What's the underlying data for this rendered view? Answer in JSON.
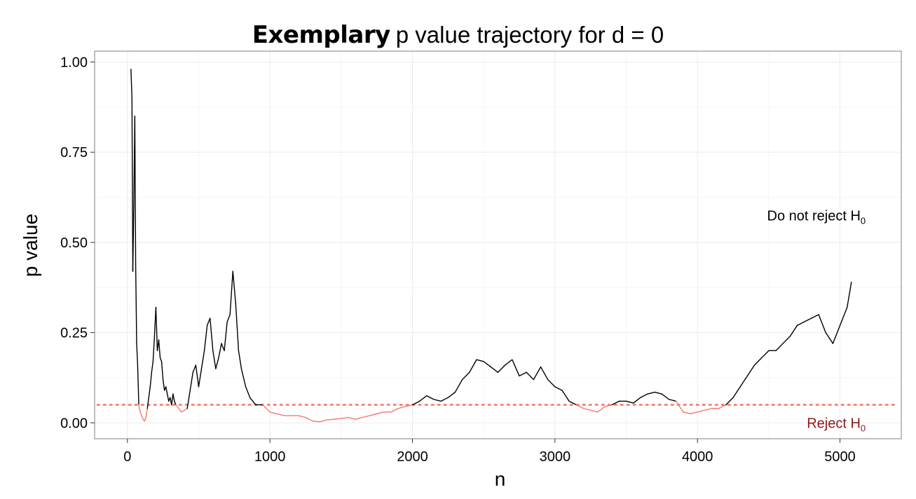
{
  "colors": {
    "reject": "#f8766d",
    "reject_text": "#8b1a1a",
    "series": "#000000",
    "grid": "#ebebeb",
    "panel_border": "#7f7f7f"
  },
  "title": {
    "part1": "Exemplary",
    "part2": "p value trajectory for d = 0"
  },
  "annotations": {
    "do_not_reject": "Do not reject H",
    "reject": "Reject H",
    "subscript": "0"
  },
  "chart_data": {
    "type": "line",
    "xlabel": "n",
    "ylabel": "p value",
    "xlim": [
      -230,
      5430
    ],
    "ylim": [
      -0.044,
      1.03
    ],
    "x_ticks": [
      0,
      1000,
      2000,
      3000,
      4000,
      5000
    ],
    "y_ticks": [
      0,
      0.25,
      0.5,
      0.75,
      1.0
    ],
    "x_tick_labels": [
      "0",
      "1000",
      "2000",
      "3000",
      "4000",
      "5000"
    ],
    "y_tick_labels": [
      "0.00",
      "0.25",
      "0.50",
      "0.75",
      "1.00"
    ],
    "threshold": 0.05,
    "grid": true,
    "series": [
      {
        "x": [
          25,
          32,
          38,
          45,
          52,
          58,
          65,
          72,
          80,
          90,
          100,
          110,
          120,
          130,
          140,
          150,
          160,
          170,
          180,
          190,
          200,
          210,
          220,
          230,
          240,
          250,
          260,
          270,
          280,
          290,
          300,
          310,
          320,
          330,
          340,
          360,
          380,
          400,
          420,
          440,
          460,
          480,
          500,
          520,
          540,
          560,
          580,
          600,
          620,
          640,
          660,
          680,
          700,
          720,
          740,
          760,
          780,
          800,
          830,
          860,
          900,
          950,
          1000,
          1050,
          1100,
          1150,
          1200,
          1250,
          1300,
          1350,
          1400,
          1450,
          1500,
          1550,
          1600,
          1650,
          1700,
          1750,
          1800,
          1850,
          1900,
          1950,
          2000,
          2050,
          2100,
          2150,
          2200,
          2250,
          2300,
          2350,
          2400,
          2450,
          2500,
          2550,
          2600,
          2650,
          2700,
          2750,
          2800,
          2850,
          2900,
          2950,
          3000,
          3050,
          3100,
          3150,
          3200,
          3250,
          3300,
          3350,
          3400,
          3450,
          3500,
          3550,
          3600,
          3650,
          3700,
          3750,
          3800,
          3850,
          3900,
          3950,
          4000,
          4050,
          4100,
          4150,
          4200,
          4250,
          4300,
          4350,
          4400,
          4450,
          4500,
          4550,
          4600,
          4650,
          4700,
          4750,
          4800,
          4850,
          4900,
          4950,
          5000,
          5050,
          5080
        ],
        "y": [
          0.98,
          0.9,
          0.42,
          0.6,
          0.85,
          0.44,
          0.22,
          0.16,
          0.05,
          0.03,
          0.02,
          0.01,
          0.005,
          0.015,
          0.04,
          0.07,
          0.1,
          0.14,
          0.17,
          0.24,
          0.32,
          0.2,
          0.23,
          0.18,
          0.17,
          0.12,
          0.09,
          0.1,
          0.08,
          0.06,
          0.07,
          0.05,
          0.08,
          0.06,
          0.05,
          0.04,
          0.03,
          0.035,
          0.04,
          0.09,
          0.14,
          0.16,
          0.1,
          0.15,
          0.2,
          0.27,
          0.29,
          0.2,
          0.15,
          0.18,
          0.22,
          0.2,
          0.28,
          0.3,
          0.42,
          0.33,
          0.2,
          0.15,
          0.1,
          0.07,
          0.05,
          0.05,
          0.03,
          0.025,
          0.02,
          0.02,
          0.02,
          0.015,
          0.005,
          0.003,
          0.008,
          0.01,
          0.012,
          0.015,
          0.01,
          0.015,
          0.02,
          0.025,
          0.03,
          0.03,
          0.04,
          0.045,
          0.05,
          0.06,
          0.075,
          0.065,
          0.06,
          0.07,
          0.085,
          0.12,
          0.14,
          0.175,
          0.17,
          0.155,
          0.14,
          0.16,
          0.175,
          0.13,
          0.14,
          0.12,
          0.155,
          0.12,
          0.1,
          0.09,
          0.06,
          0.05,
          0.04,
          0.035,
          0.03,
          0.045,
          0.05,
          0.06,
          0.06,
          0.055,
          0.07,
          0.08,
          0.085,
          0.08,
          0.065,
          0.06,
          0.03,
          0.025,
          0.03,
          0.035,
          0.04,
          0.04,
          0.05,
          0.07,
          0.1,
          0.13,
          0.16,
          0.18,
          0.2,
          0.2,
          0.22,
          0.24,
          0.27,
          0.28,
          0.29,
          0.3,
          0.25,
          0.22,
          0.27,
          0.32,
          0.39
        ]
      }
    ]
  }
}
